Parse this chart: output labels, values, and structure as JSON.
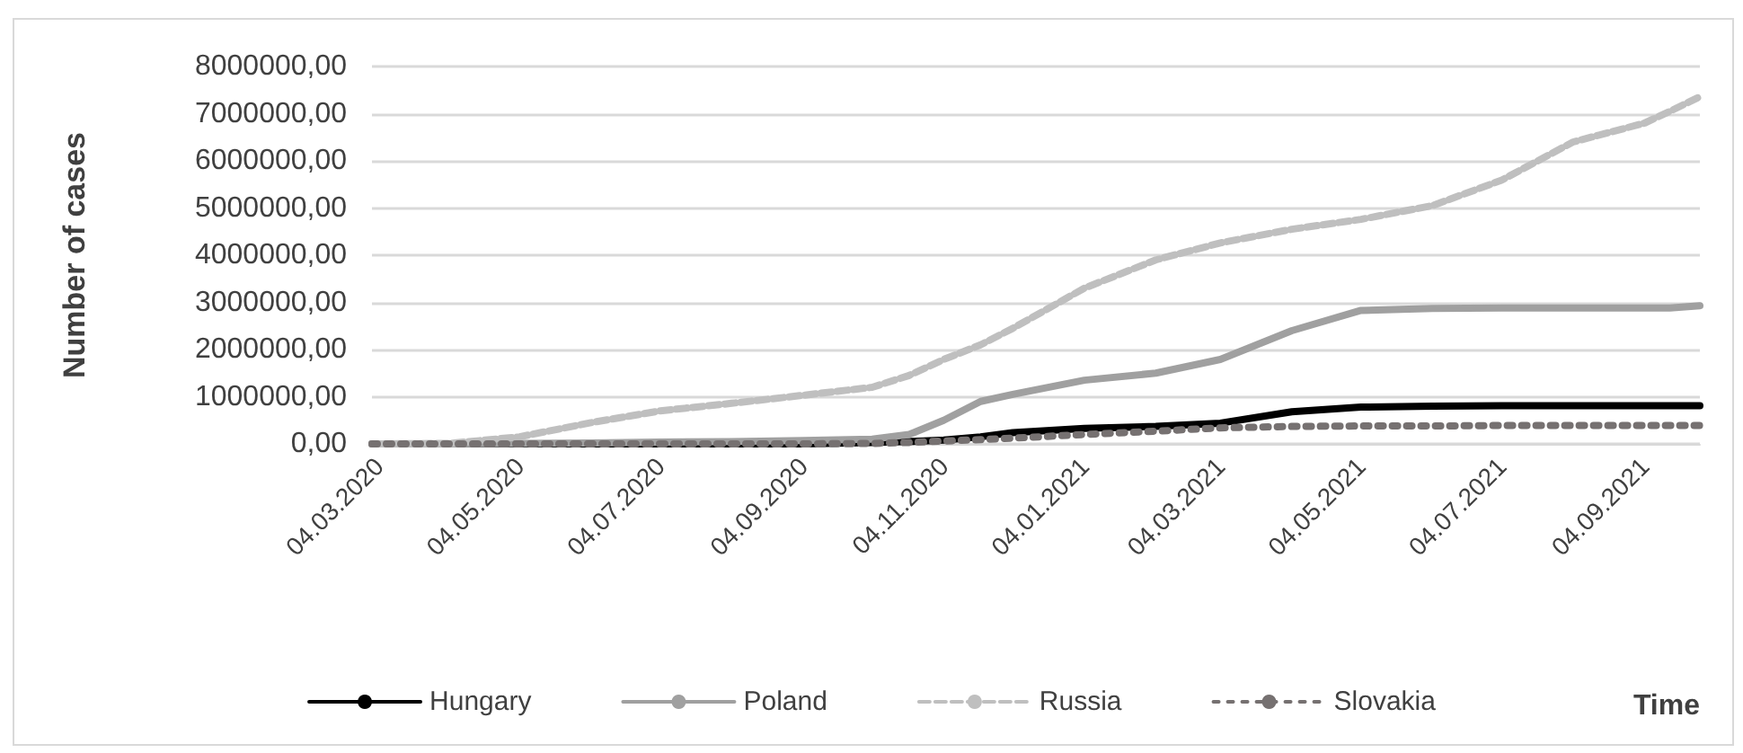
{
  "chart_data": {
    "type": "line",
    "xlabel": "Time",
    "ylabel": "Number of cases",
    "x": [
      "2020-03-01",
      "2020-04-04",
      "2020-05-04",
      "2020-06-04",
      "2020-07-04",
      "2020-08-04",
      "2020-09-04",
      "2020-10-04",
      "2020-10-20",
      "2020-11-04",
      "2020-11-20",
      "2020-12-04",
      "2021-01-04",
      "2021-02-04",
      "2021-03-04",
      "2021-04-04",
      "2021-05-04",
      "2021-06-04",
      "2021-07-04",
      "2021-08-04",
      "2021-09-04",
      "2021-09-15",
      "2021-09-28"
    ],
    "series": [
      {
        "name": "Hungary",
        "color": "#000000",
        "line_style": "solid",
        "values": [
          0,
          0,
          0,
          0,
          0,
          0,
          0,
          30000.0,
          50000.0,
          80000.0,
          150000.0,
          240000.0,
          330000.0,
          370000.0,
          440000.0,
          680000.0,
          780000.0,
          800000.0,
          810000.0,
          810000.0,
          810000.0,
          810000.0,
          810000.0
        ]
      },
      {
        "name": "Poland",
        "color": "#a0a0a0",
        "line_style": "solid",
        "values": [
          0,
          0,
          10000.0,
          20000.0,
          40000.0,
          50000.0,
          70000.0,
          100000.0,
          200000.0,
          500000.0,
          900000.0,
          1050000.0,
          1350000.0,
          1500000.0,
          1790000.0,
          2400000.0,
          2830000.0,
          2870000.0,
          2880000.0,
          2880000.0,
          2880000.0,
          2880000.0,
          2930000.0
        ]
      },
      {
        "name": "Russia",
        "color": "#bfbfbf",
        "line_style": "dashed",
        "values": [
          0,
          10000.0,
          150000.0,
          450000.0,
          700000.0,
          860000.0,
          1030000.0,
          1200000.0,
          1450000.0,
          1790000.0,
          2100000.0,
          2450000.0,
          3300000.0,
          3900000.0,
          4260000.0,
          4550000.0,
          4760000.0,
          5050000.0,
          5590000.0,
          6400000.0,
          6800000.0,
          7050000.0,
          7360000.0
        ]
      },
      {
        "name": "Slovakia",
        "color": "#767171",
        "line_style": "dashed",
        "values": [
          0,
          0,
          0,
          0,
          0,
          0,
          0,
          10000.0,
          30000.0,
          60000.0,
          90000.0,
          120000.0,
          200000.0,
          270000.0,
          340000.0,
          370000.0,
          380000.0,
          380000.0,
          390000.0,
          390000.0,
          390000.0,
          390000.0,
          390000.0
        ]
      }
    ],
    "xlim": [
      "2020-03-01",
      "2021-09-28"
    ],
    "xticks": [
      {
        "value": "2020-03-04",
        "label": "04.03.2020"
      },
      {
        "value": "2020-05-04",
        "label": "04.05.2020"
      },
      {
        "value": "2020-07-04",
        "label": "04.07.2020"
      },
      {
        "value": "2020-09-04",
        "label": "04.09.2020"
      },
      {
        "value": "2020-11-04",
        "label": "04.11.2020"
      },
      {
        "value": "2021-01-04",
        "label": "04.01.2021"
      },
      {
        "value": "2021-03-04",
        "label": "04.03.2021"
      },
      {
        "value": "2021-05-04",
        "label": "04.05.2021"
      },
      {
        "value": "2021-07-04",
        "label": "04.07.2021"
      },
      {
        "value": "2021-09-04",
        "label": "04.09.2021"
      }
    ],
    "ylim": [
      0,
      8000000
    ],
    "yticks": [
      {
        "value": 0,
        "label": "0,00"
      },
      {
        "value": 1000000,
        "label": "1000000,00"
      },
      {
        "value": 2000000,
        "label": "2000000,00"
      },
      {
        "value": 3000000,
        "label": "3000000,00"
      },
      {
        "value": 4000000,
        "label": "4000000,00"
      },
      {
        "value": 5000000,
        "label": "5000000,00"
      },
      {
        "value": 6000000,
        "label": "6000000,00"
      },
      {
        "value": 7000000,
        "label": "7000000,00"
      },
      {
        "value": 8000000,
        "label": "8000000,00"
      }
    ],
    "grid": "y",
    "legend": "bottom",
    "marker": "none"
  }
}
